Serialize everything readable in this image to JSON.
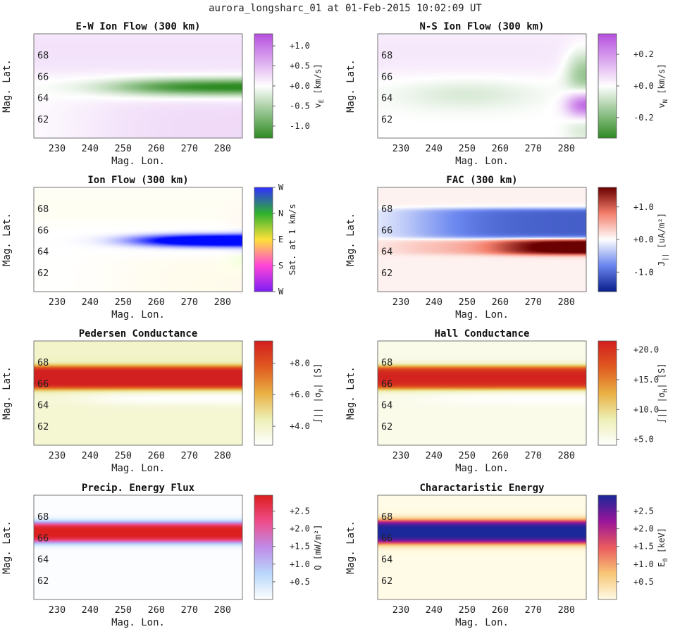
{
  "figure": {
    "title": "aurora_longsharc_01 at 01-Feb-2015 10:02:09 UT"
  },
  "chart_data": [
    {
      "type": "heatmap",
      "title": "E-W Ion Flow (300 km)",
      "xlabel": "Mag. Lon.",
      "ylabel": "Mag. Lat.",
      "xlim": [
        223,
        286
      ],
      "ylim": [
        60.2,
        70.0
      ],
      "xticks": [
        230,
        240,
        250,
        260,
        270,
        280
      ],
      "yticks": [
        62,
        64,
        66,
        68
      ],
      "colorbar": {
        "label_main": "v",
        "label_sub": "E",
        "label_rest": " [km/s]",
        "ticks": [
          "+1.0",
          "+0.5",
          "+0.0",
          "-0.5",
          "-1.0"
        ],
        "tick_values": [
          1.0,
          0.5,
          0.0,
          -0.5,
          -1.0
        ],
        "range": [
          -1.3,
          1.3
        ],
        "colors": [
          "#2e8b22",
          "#ffffff",
          "#b64fdf"
        ]
      }
    },
    {
      "type": "heatmap",
      "title": "N-S Ion Flow (300 km)",
      "xlabel": "Mag. Lon.",
      "ylabel": "Mag. Lat.",
      "xlim": [
        223,
        286
      ],
      "ylim": [
        60.2,
        70.0
      ],
      "xticks": [
        230,
        240,
        250,
        260,
        270,
        280
      ],
      "yticks": [
        62,
        64,
        66,
        68
      ],
      "colorbar": {
        "label_main": "v",
        "label_sub": "N",
        "label_rest": " [km/s]",
        "ticks": [
          "+0.2",
          "+0.0",
          "-0.2"
        ],
        "tick_values": [
          0.2,
          0.0,
          -0.2
        ],
        "range": [
          -0.33,
          0.33
        ],
        "colors": [
          "#2e8b22",
          "#ffffff",
          "#b64fdf"
        ]
      }
    },
    {
      "type": "heatmap",
      "title": "Ion Flow (300 km)",
      "xlabel": "Mag. Lon.",
      "ylabel": "Mag. Lat.",
      "xlim": [
        223,
        286
      ],
      "ylim": [
        60.2,
        70.0
      ],
      "xticks": [
        230,
        240,
        250,
        260,
        270,
        280
      ],
      "yticks": [
        62,
        64,
        66,
        68
      ],
      "colorbar": {
        "label_main": "Sat. at 1 km/s",
        "label_sub": "",
        "label_rest": "",
        "ticks": [
          "W",
          "N",
          "E",
          "S",
          "W"
        ],
        "tick_values": [
          1.0,
          0.75,
          0.5,
          0.25,
          0.0
        ],
        "range": [
          0,
          1
        ],
        "colors": [
          "#7d1ff5",
          "#ff45d8",
          "#ffe23a",
          "#2fb22f",
          "#2f2fff"
        ]
      }
    },
    {
      "type": "heatmap",
      "title": "FAC (300 km)",
      "xlabel": "Mag. Lon.",
      "ylabel": "Mag. Lat.",
      "xlim": [
        223,
        286
      ],
      "ylim": [
        60.2,
        70.0
      ],
      "xticks": [
        230,
        240,
        250,
        260,
        270,
        280
      ],
      "yticks": [
        62,
        64,
        66,
        68
      ],
      "colorbar": {
        "label_main": "J",
        "label_sub": "||",
        "label_rest": " [uA/m²]",
        "ticks": [
          "+1.0",
          "+0.0",
          "-1.0"
        ],
        "tick_values": [
          1.0,
          0.0,
          -1.0
        ],
        "range": [
          -1.6,
          1.6
        ],
        "colors": [
          "#0a1f8c",
          "#6a86ef",
          "#ffffff",
          "#f47f6c",
          "#6b0000"
        ]
      }
    },
    {
      "type": "heatmap",
      "title": "Pedersen Conductance",
      "xlabel": "Mag. Lon.",
      "ylabel": "Mag. Lat.",
      "xlim": [
        223,
        286
      ],
      "ylim": [
        60.2,
        70.0
      ],
      "xticks": [
        230,
        240,
        250,
        260,
        270,
        280
      ],
      "yticks": [
        62,
        64,
        66,
        68
      ],
      "colorbar": {
        "label_main": "∫|| |σ",
        "label_sub": "P",
        "label_rest": "| [S]",
        "ticks": [
          "+8.0",
          "+6.0",
          "+4.0"
        ],
        "tick_values": [
          8.0,
          6.0,
          4.0
        ],
        "range": [
          2.8,
          9.4
        ],
        "colors": [
          "#ffffff",
          "#eef0b5",
          "#e9b044",
          "#e05a20",
          "#d21f1f"
        ]
      }
    },
    {
      "type": "heatmap",
      "title": "Hall Conductance",
      "xlabel": "Mag. Lon.",
      "ylabel": "Mag. Lat.",
      "xlim": [
        223,
        286
      ],
      "ylim": [
        60.2,
        70.0
      ],
      "xticks": [
        230,
        240,
        250,
        260,
        270,
        280
      ],
      "yticks": [
        62,
        64,
        66,
        68
      ],
      "colorbar": {
        "label_main": "∫|| |σ",
        "label_sub": "H",
        "label_rest": "| [S]",
        "ticks": [
          "+20.0",
          "+15.0",
          "+10.0",
          "+5.0"
        ],
        "tick_values": [
          20.0,
          15.0,
          10.0,
          5.0
        ],
        "range": [
          4.0,
          21.5
        ],
        "colors": [
          "#ffffff",
          "#eef0b5",
          "#e9b044",
          "#e05a20",
          "#d21f1f"
        ]
      }
    },
    {
      "type": "heatmap",
      "title": "Precip. Energy Flux",
      "xlabel": "Mag. Lon.",
      "ylabel": "Mag. Lat.",
      "xlim": [
        223,
        286
      ],
      "ylim": [
        60.2,
        70.0
      ],
      "xticks": [
        230,
        240,
        250,
        260,
        270,
        280
      ],
      "yticks": [
        62,
        64,
        66,
        68
      ],
      "colorbar": {
        "label_main": "Q [mW/m²]",
        "label_sub": "",
        "label_rest": "",
        "ticks": [
          "+2.5",
          "+2.0",
          "+1.5",
          "+1.0",
          "+0.5"
        ],
        "tick_values": [
          2.5,
          2.0,
          1.5,
          1.0,
          0.5
        ],
        "range": [
          0.0,
          2.95
        ],
        "colors": [
          "#ffffff",
          "#b9d8fb",
          "#bf8ce9",
          "#ef4d8a",
          "#dc1f1f"
        ]
      }
    },
    {
      "type": "heatmap",
      "title": "Charactaristic Energy",
      "xlabel": "Mag. Lon.",
      "ylabel": "Mag. Lat.",
      "xlim": [
        223,
        286
      ],
      "ylim": [
        60.2,
        70.0
      ],
      "xticks": [
        230,
        240,
        250,
        260,
        270,
        280
      ],
      "yticks": [
        62,
        64,
        66,
        68
      ],
      "colorbar": {
        "label_main": "E",
        "label_sub": "0",
        "label_rest": " [keV]",
        "ticks": [
          "+2.5",
          "+2.0",
          "+1.5",
          "+1.0",
          "+0.5"
        ],
        "tick_values": [
          2.5,
          2.0,
          1.5,
          1.0,
          0.5
        ],
        "range": [
          0.0,
          2.95
        ],
        "colors": [
          "#fffbe6",
          "#f8c776",
          "#ea5b5e",
          "#9b159a",
          "#1a2899"
        ]
      }
    }
  ]
}
